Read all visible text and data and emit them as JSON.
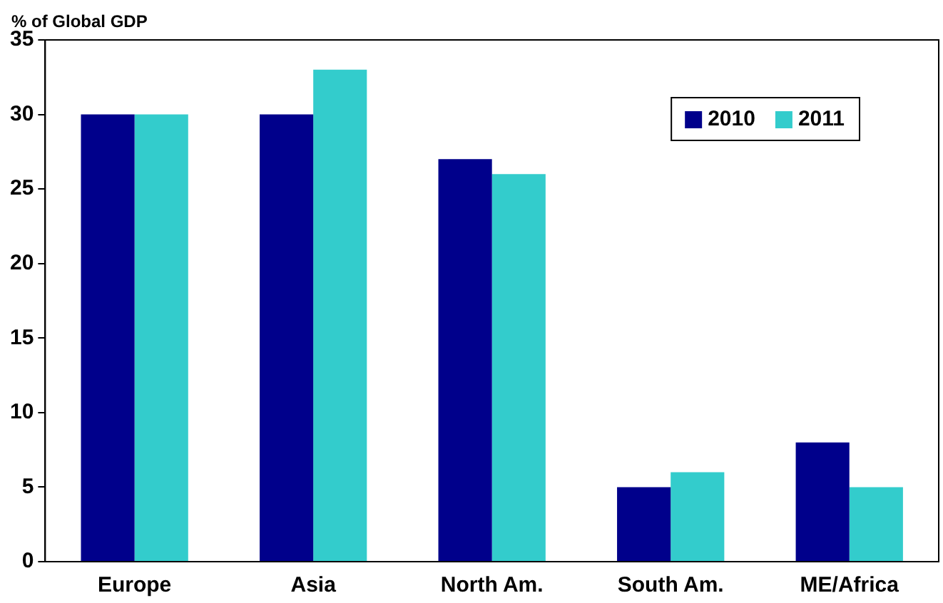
{
  "chart_data": {
    "type": "bar",
    "ylabel": "% of Global GDP",
    "categories": [
      "Europe",
      "Asia",
      "North Am.",
      "South Am.",
      "ME/Africa"
    ],
    "series": [
      {
        "name": "2010",
        "color": "#00008b",
        "values": [
          30,
          30,
          27,
          5,
          8
        ]
      },
      {
        "name": "2011",
        "color": "#33cccc",
        "values": [
          30,
          33,
          26,
          6,
          5
        ]
      }
    ],
    "ylim": [
      0,
      35
    ],
    "yticks": [
      0,
      5,
      10,
      15,
      20,
      25,
      30,
      35
    ],
    "grid": false,
    "legend": "top right"
  }
}
